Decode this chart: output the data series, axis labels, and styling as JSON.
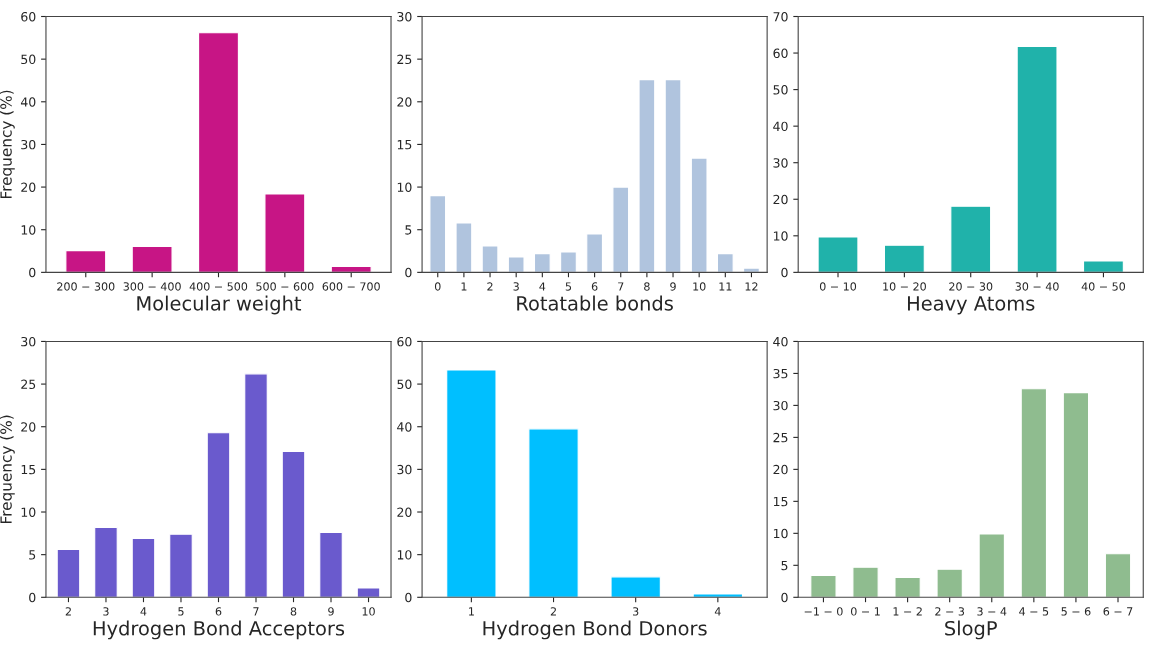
{
  "chart_data": [
    {
      "type": "bar",
      "xlabel": "Molecular weight",
      "ylabel": "Frequency (%)",
      "categories": [
        "200 − 300",
        "300 − 400",
        "400 − 500",
        "500 − 600",
        "600 − 700"
      ],
      "values": [
        5.1,
        6.1,
        56.2,
        18.4,
        1.4
      ],
      "color": "#c71585",
      "ylim": [
        0,
        60
      ],
      "yticks": [
        0,
        10,
        20,
        30,
        40,
        50,
        60
      ],
      "grid": false,
      "legend": false
    },
    {
      "type": "bar",
      "xlabel": "Rotatable bonds",
      "categories": [
        "0",
        "1",
        "2",
        "3",
        "4",
        "5",
        "6",
        "7",
        "8",
        "9",
        "10",
        "11",
        "12"
      ],
      "values": [
        9.0,
        5.8,
        3.1,
        1.8,
        2.2,
        2.4,
        4.5,
        10.0,
        22.6,
        22.6,
        13.4,
        2.2,
        0.5
      ],
      "color": "#b0c4de",
      "ylim": [
        0,
        30
      ],
      "yticks": [
        0,
        5,
        10,
        15,
        20,
        25,
        30
      ],
      "grid": false,
      "legend": false
    },
    {
      "type": "bar",
      "xlabel": "Heavy Atoms",
      "categories": [
        "0 − 10",
        "10 − 20",
        "20 − 30",
        "30 − 40",
        "40 − 50"
      ],
      "values": [
        9.7,
        7.4,
        18.1,
        61.8,
        3.1
      ],
      "color": "#20b2aa",
      "ylim": [
        0,
        70
      ],
      "yticks": [
        0,
        10,
        20,
        30,
        40,
        50,
        60,
        70
      ],
      "grid": false,
      "legend": false
    },
    {
      "type": "bar",
      "xlabel": "Hydrogen Bond Acceptors",
      "ylabel": "Frequency (%)",
      "categories": [
        "2",
        "3",
        "4",
        "5",
        "6",
        "7",
        "8",
        "9",
        "10"
      ],
      "values": [
        5.6,
        8.2,
        6.9,
        7.4,
        19.3,
        26.2,
        17.1,
        7.6,
        1.1
      ],
      "color": "#6a5acd",
      "ylim": [
        0,
        30
      ],
      "yticks": [
        0,
        5,
        10,
        15,
        20,
        25,
        30
      ],
      "grid": false,
      "legend": false
    },
    {
      "type": "bar",
      "xlabel": "Hydrogen Bond Donors",
      "categories": [
        "1",
        "2",
        "3",
        "4"
      ],
      "values": [
        53.3,
        39.5,
        4.8,
        0.8
      ],
      "color": "#00bfff",
      "ylim": [
        0,
        60
      ],
      "yticks": [
        0,
        10,
        20,
        30,
        40,
        50,
        60
      ],
      "grid": false,
      "legend": false
    },
    {
      "type": "bar",
      "xlabel": "SlogP",
      "categories": [
        "−1 − 0",
        "0 − 1",
        "1 − 2",
        "2 − 3",
        "3 − 4",
        "4 − 5",
        "5 − 6",
        "6 − 7"
      ],
      "values": [
        3.4,
        4.7,
        3.1,
        4.4,
        9.9,
        32.6,
        32.0,
        6.8
      ],
      "color": "#8fbc8f",
      "ylim": [
        0,
        40
      ],
      "yticks": [
        0,
        5,
        10,
        15,
        20,
        25,
        30,
        35,
        40
      ],
      "grid": false,
      "legend": false
    }
  ]
}
